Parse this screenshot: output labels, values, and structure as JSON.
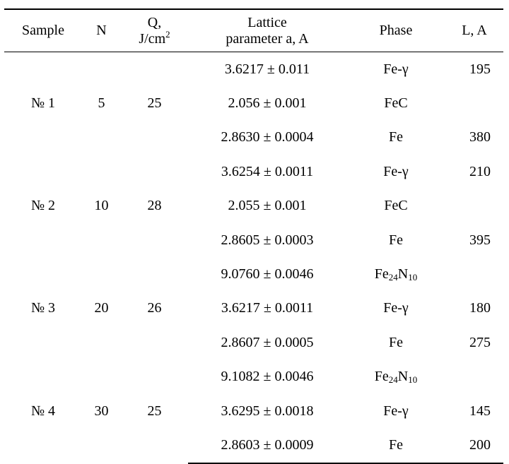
{
  "table": {
    "headers": {
      "sample": "Sample",
      "n": "N",
      "q_line1": "Q,",
      "q_line2": "J/cm",
      "q_sup": "2",
      "lattice_line1": "Lattice",
      "lattice_line2": "parameter a, A",
      "phase": "Phase",
      "l": "L, A"
    },
    "groups": [
      {
        "sample": "№ 1",
        "n": "5",
        "q": "25",
        "rows": [
          {
            "lattice": "3.6217 ± 0.011",
            "phase": "Fe-γ",
            "l": "195"
          },
          {
            "lattice": "2.056 ± 0.001",
            "phase": "FeC",
            "l": ""
          },
          {
            "lattice": "2.8630 ± 0.0004",
            "phase": "Fe",
            "l": "380"
          }
        ]
      },
      {
        "sample": "№ 2",
        "n": "10",
        "q": "28",
        "rows": [
          {
            "lattice": "3.6254 ± 0.0011",
            "phase": "Fe-γ",
            "l": "210"
          },
          {
            "lattice": "2.055 ± 0.001",
            "phase": "FeC",
            "l": ""
          },
          {
            "lattice": "2.8605 ± 0.0003",
            "phase": "Fe",
            "l": "395"
          }
        ]
      },
      {
        "sample": "№ 3",
        "n": "20",
        "q": "26",
        "rows": [
          {
            "lattice": "9.0760 ± 0.0046",
            "phase": "Fe24N10",
            "phase_base1": "Fe",
            "phase_sub1": "24",
            "phase_base2": "N",
            "phase_sub2": "10",
            "l": ""
          },
          {
            "lattice": "3.6217 ± 0.0011",
            "phase": "Fe-γ",
            "l": "180"
          },
          {
            "lattice": "2.8607 ± 0.0005",
            "phase": "Fe",
            "l": "275"
          }
        ]
      },
      {
        "sample": "№ 4",
        "n": "30",
        "q": "25",
        "rows": [
          {
            "lattice": "9.1082 ± 0.0046",
            "phase": "Fe24N10",
            "phase_base1": "Fe",
            "phase_sub1": "24",
            "phase_base2": "N",
            "phase_sub2": "10",
            "l": ""
          },
          {
            "lattice": "3.6295 ± 0.0018",
            "phase": "Fe-γ",
            "l": "145"
          },
          {
            "lattice": "2.8603 ± 0.0009",
            "phase": "Fe",
            "l": "200"
          }
        ]
      }
    ]
  }
}
